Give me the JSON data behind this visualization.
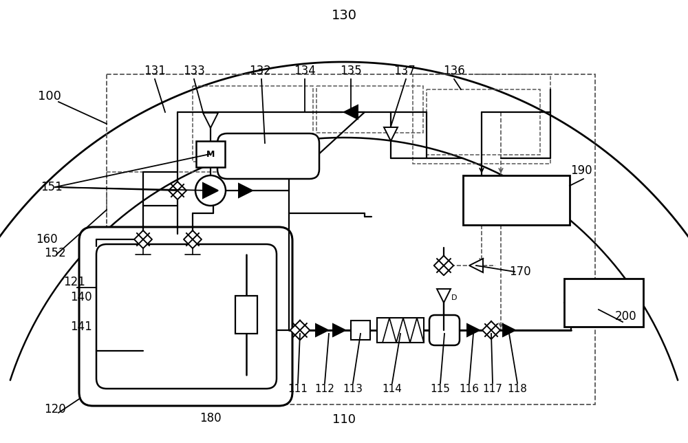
{
  "bg": "#ffffff",
  "lc": "#000000",
  "dc": "#555555",
  "lw": 1.6,
  "dlw": 1.2,
  "vlw": 1.4
}
